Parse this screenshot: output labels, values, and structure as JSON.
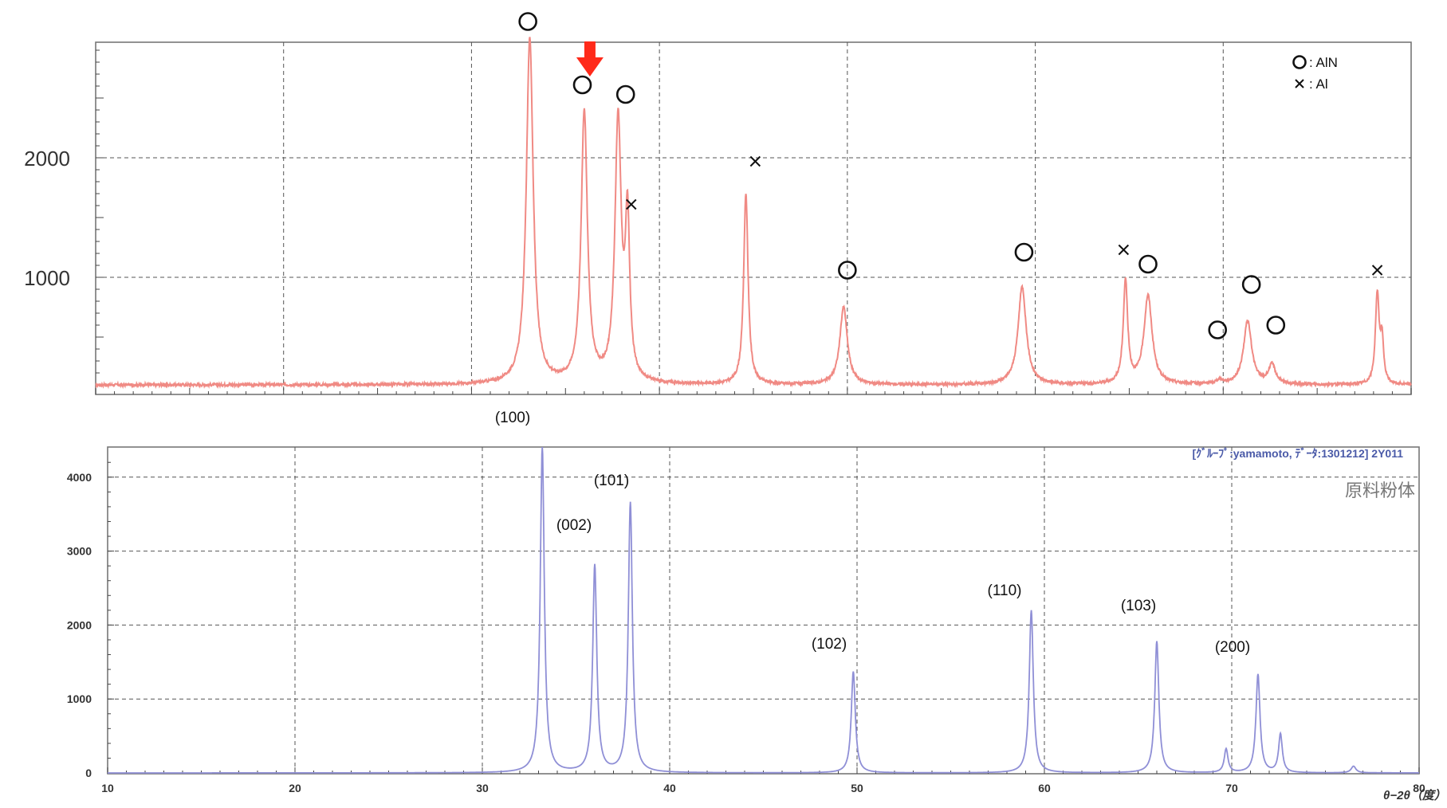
{
  "chart_data": [
    {
      "type": "line",
      "title": "",
      "xlabel": "",
      "ylabel": "",
      "xlim": [
        10,
        80
      ],
      "ylim": [
        0,
        3000
      ],
      "grid": true,
      "yticks": [
        1000,
        2000
      ],
      "x_grid": [
        20,
        30,
        40,
        50,
        60,
        70
      ],
      "series_color": "#f08a84",
      "baseline": 100,
      "peaks": [
        {
          "x": 33.1,
          "y": 3000,
          "w": 0.22
        },
        {
          "x": 36.0,
          "y": 2370,
          "w": 0.2
        },
        {
          "x": 37.8,
          "y": 2280,
          "w": 0.2
        },
        {
          "x": 38.3,
          "y": 1400,
          "w": 0.14
        },
        {
          "x": 44.6,
          "y": 1700,
          "w": 0.14
        },
        {
          "x": 49.8,
          "y": 750,
          "w": 0.24
        },
        {
          "x": 59.3,
          "y": 920,
          "w": 0.26
        },
        {
          "x": 64.8,
          "y": 960,
          "w": 0.14
        },
        {
          "x": 66.0,
          "y": 840,
          "w": 0.26
        },
        {
          "x": 69.8,
          "y": 130,
          "w": 0.22
        },
        {
          "x": 71.3,
          "y": 630,
          "w": 0.26
        },
        {
          "x": 72.6,
          "y": 260,
          "w": 0.22
        },
        {
          "x": 78.2,
          "y": 850,
          "w": 0.12
        },
        {
          "x": 78.45,
          "y": 450,
          "w": 0.1
        }
      ],
      "markers": [
        {
          "type": "AlN",
          "x": 33.0,
          "y": 3140
        },
        {
          "type": "AlN",
          "x": 35.9,
          "y": 2610
        },
        {
          "type": "AlN",
          "x": 38.2,
          "y": 2530
        },
        {
          "type": "Al",
          "x": 38.5,
          "y": 1610
        },
        {
          "type": "Al",
          "x": 45.1,
          "y": 1970
        },
        {
          "type": "AlN",
          "x": 50.0,
          "y": 1060
        },
        {
          "type": "AlN",
          "x": 59.4,
          "y": 1210
        },
        {
          "type": "Al",
          "x": 64.7,
          "y": 1230
        },
        {
          "type": "AlN",
          "x": 66.0,
          "y": 1110
        },
        {
          "type": "AlN",
          "x": 69.7,
          "y": 560
        },
        {
          "type": "AlN",
          "x": 71.5,
          "y": 940
        },
        {
          "type": "AlN",
          "x": 72.8,
          "y": 600
        },
        {
          "type": "Al",
          "x": 78.2,
          "y": 1060
        }
      ],
      "legend": [
        {
          "symbol": "circle",
          "label": ": AlN"
        },
        {
          "symbol": "cross",
          "label": ": Al"
        }
      ],
      "legend_position": "top-right",
      "annotation_arrow": {
        "color": "#ff2a1a",
        "x": 36.3
      }
    },
    {
      "type": "line",
      "title": "",
      "header": "[ｸﾞﾙｰﾌﾟ:yamamoto, ﾃﾞｰﾀ:1301212] 2Y011",
      "handwritten_note": "原料粉体",
      "xlabel": "θ−2θ（度）",
      "ylabel": "",
      "xlim": [
        10,
        80
      ],
      "ylim": [
        0,
        4300
      ],
      "grid": true,
      "xticks": [
        10,
        20,
        30,
        40,
        50,
        60,
        70,
        80
      ],
      "yticks": [
        0,
        1000,
        2000,
        3000,
        4000
      ],
      "series_color": "#8f8fd6",
      "baseline": 0,
      "peaks": [
        {
          "x": 33.2,
          "y": 4400,
          "w": 0.13
        },
        {
          "x": 36.0,
          "y": 2800,
          "w": 0.13
        },
        {
          "x": 37.9,
          "y": 3650,
          "w": 0.13
        },
        {
          "x": 49.8,
          "y": 1370,
          "w": 0.13
        },
        {
          "x": 59.3,
          "y": 2200,
          "w": 0.13
        },
        {
          "x": 66.0,
          "y": 1780,
          "w": 0.13
        },
        {
          "x": 69.7,
          "y": 320,
          "w": 0.12
        },
        {
          "x": 71.4,
          "y": 1330,
          "w": 0.13
        },
        {
          "x": 72.6,
          "y": 520,
          "w": 0.12
        },
        {
          "x": 76.5,
          "y": 90,
          "w": 0.15
        }
      ]
    }
  ],
  "labels": {
    "hkl_100": "(100)",
    "hkl_002": "(002)",
    "hkl_101": "(101)",
    "hkl_102": "(102)",
    "hkl_110": "(110)",
    "hkl_103": "(103)",
    "hkl_200": "(200)"
  }
}
